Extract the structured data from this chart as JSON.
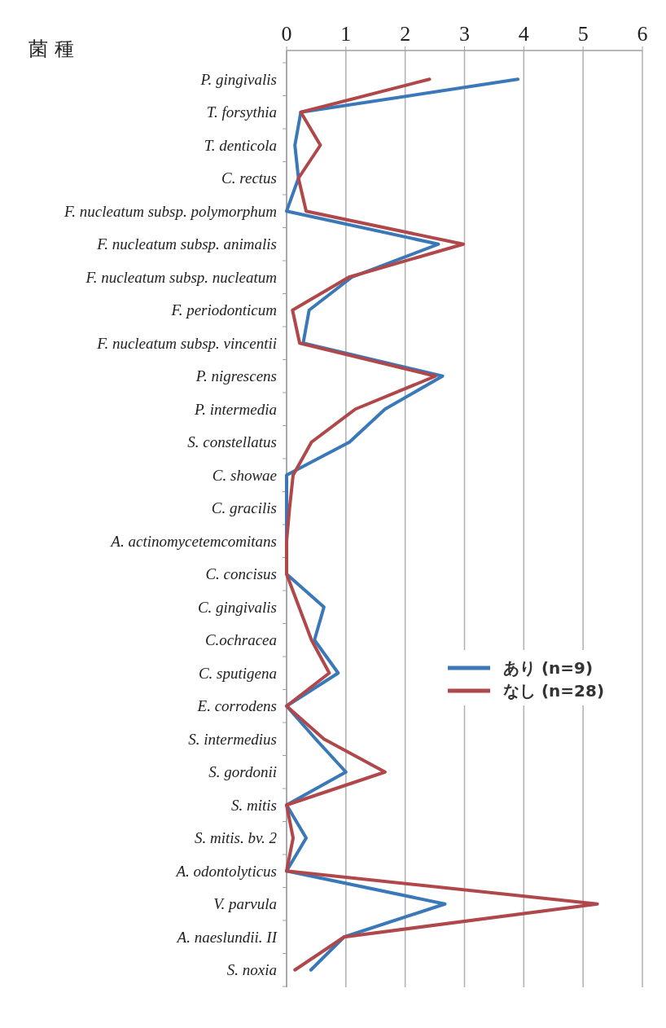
{
  "chart_data": {
    "type": "line",
    "orientation": "horizontal",
    "ylabel": "菌 種",
    "categories": [
      "P. gingivalis",
      "T. forsythia",
      "T. denticola",
      "C. rectus",
      "F. nucleatum subsp. polymorphum",
      "F. nucleatum subsp. animalis",
      "F. nucleatum subsp. nucleatum",
      "F. periodonticum",
      "F. nucleatum subsp. vincentii",
      "P. nigrescens",
      "P. intermedia",
      "S. constellatus",
      "C. showae",
      "C. gracilis",
      "A. actinomycetemcomitans",
      "C. concisus",
      "C. gingivalis",
      "C.ochracea",
      "C. sputigena",
      "E. corrodens",
      "S. intermedius",
      "S. gordonii",
      "S. mitis",
      "S. mitis. bv. 2",
      "A. odontolyticus",
      "V. parvula",
      "A. naeslundii. II",
      "S. noxia"
    ],
    "series": [
      {
        "name": "あり (n=9)",
        "color": "#3a78b8",
        "values": [
          3.9,
          0.24,
          0.14,
          0.2,
          0,
          2.56,
          1.1,
          0.38,
          0.28,
          2.63,
          1.66,
          1.06,
          0,
          0,
          0,
          0,
          0.63,
          0.47,
          0.87,
          0,
          0.49,
          1.0,
          0,
          0.33,
          0,
          2.67,
          0.97,
          0.41
        ]
      },
      {
        "name": "なし (n=28)",
        "color": "#b0474a",
        "values": [
          2.41,
          0.24,
          0.57,
          0.2,
          0.33,
          2.98,
          1.05,
          0.1,
          0.22,
          2.51,
          1.16,
          0.42,
          0.11,
          0.05,
          0,
          0,
          0.21,
          0.42,
          0.72,
          0,
          0.63,
          1.66,
          0,
          0.11,
          0,
          5.24,
          0.97,
          0.14
        ]
      }
    ],
    "xlim": [
      0,
      6
    ],
    "xticks": [
      0,
      1,
      2,
      3,
      4,
      5,
      6
    ],
    "grid": "x",
    "legend": "right"
  }
}
